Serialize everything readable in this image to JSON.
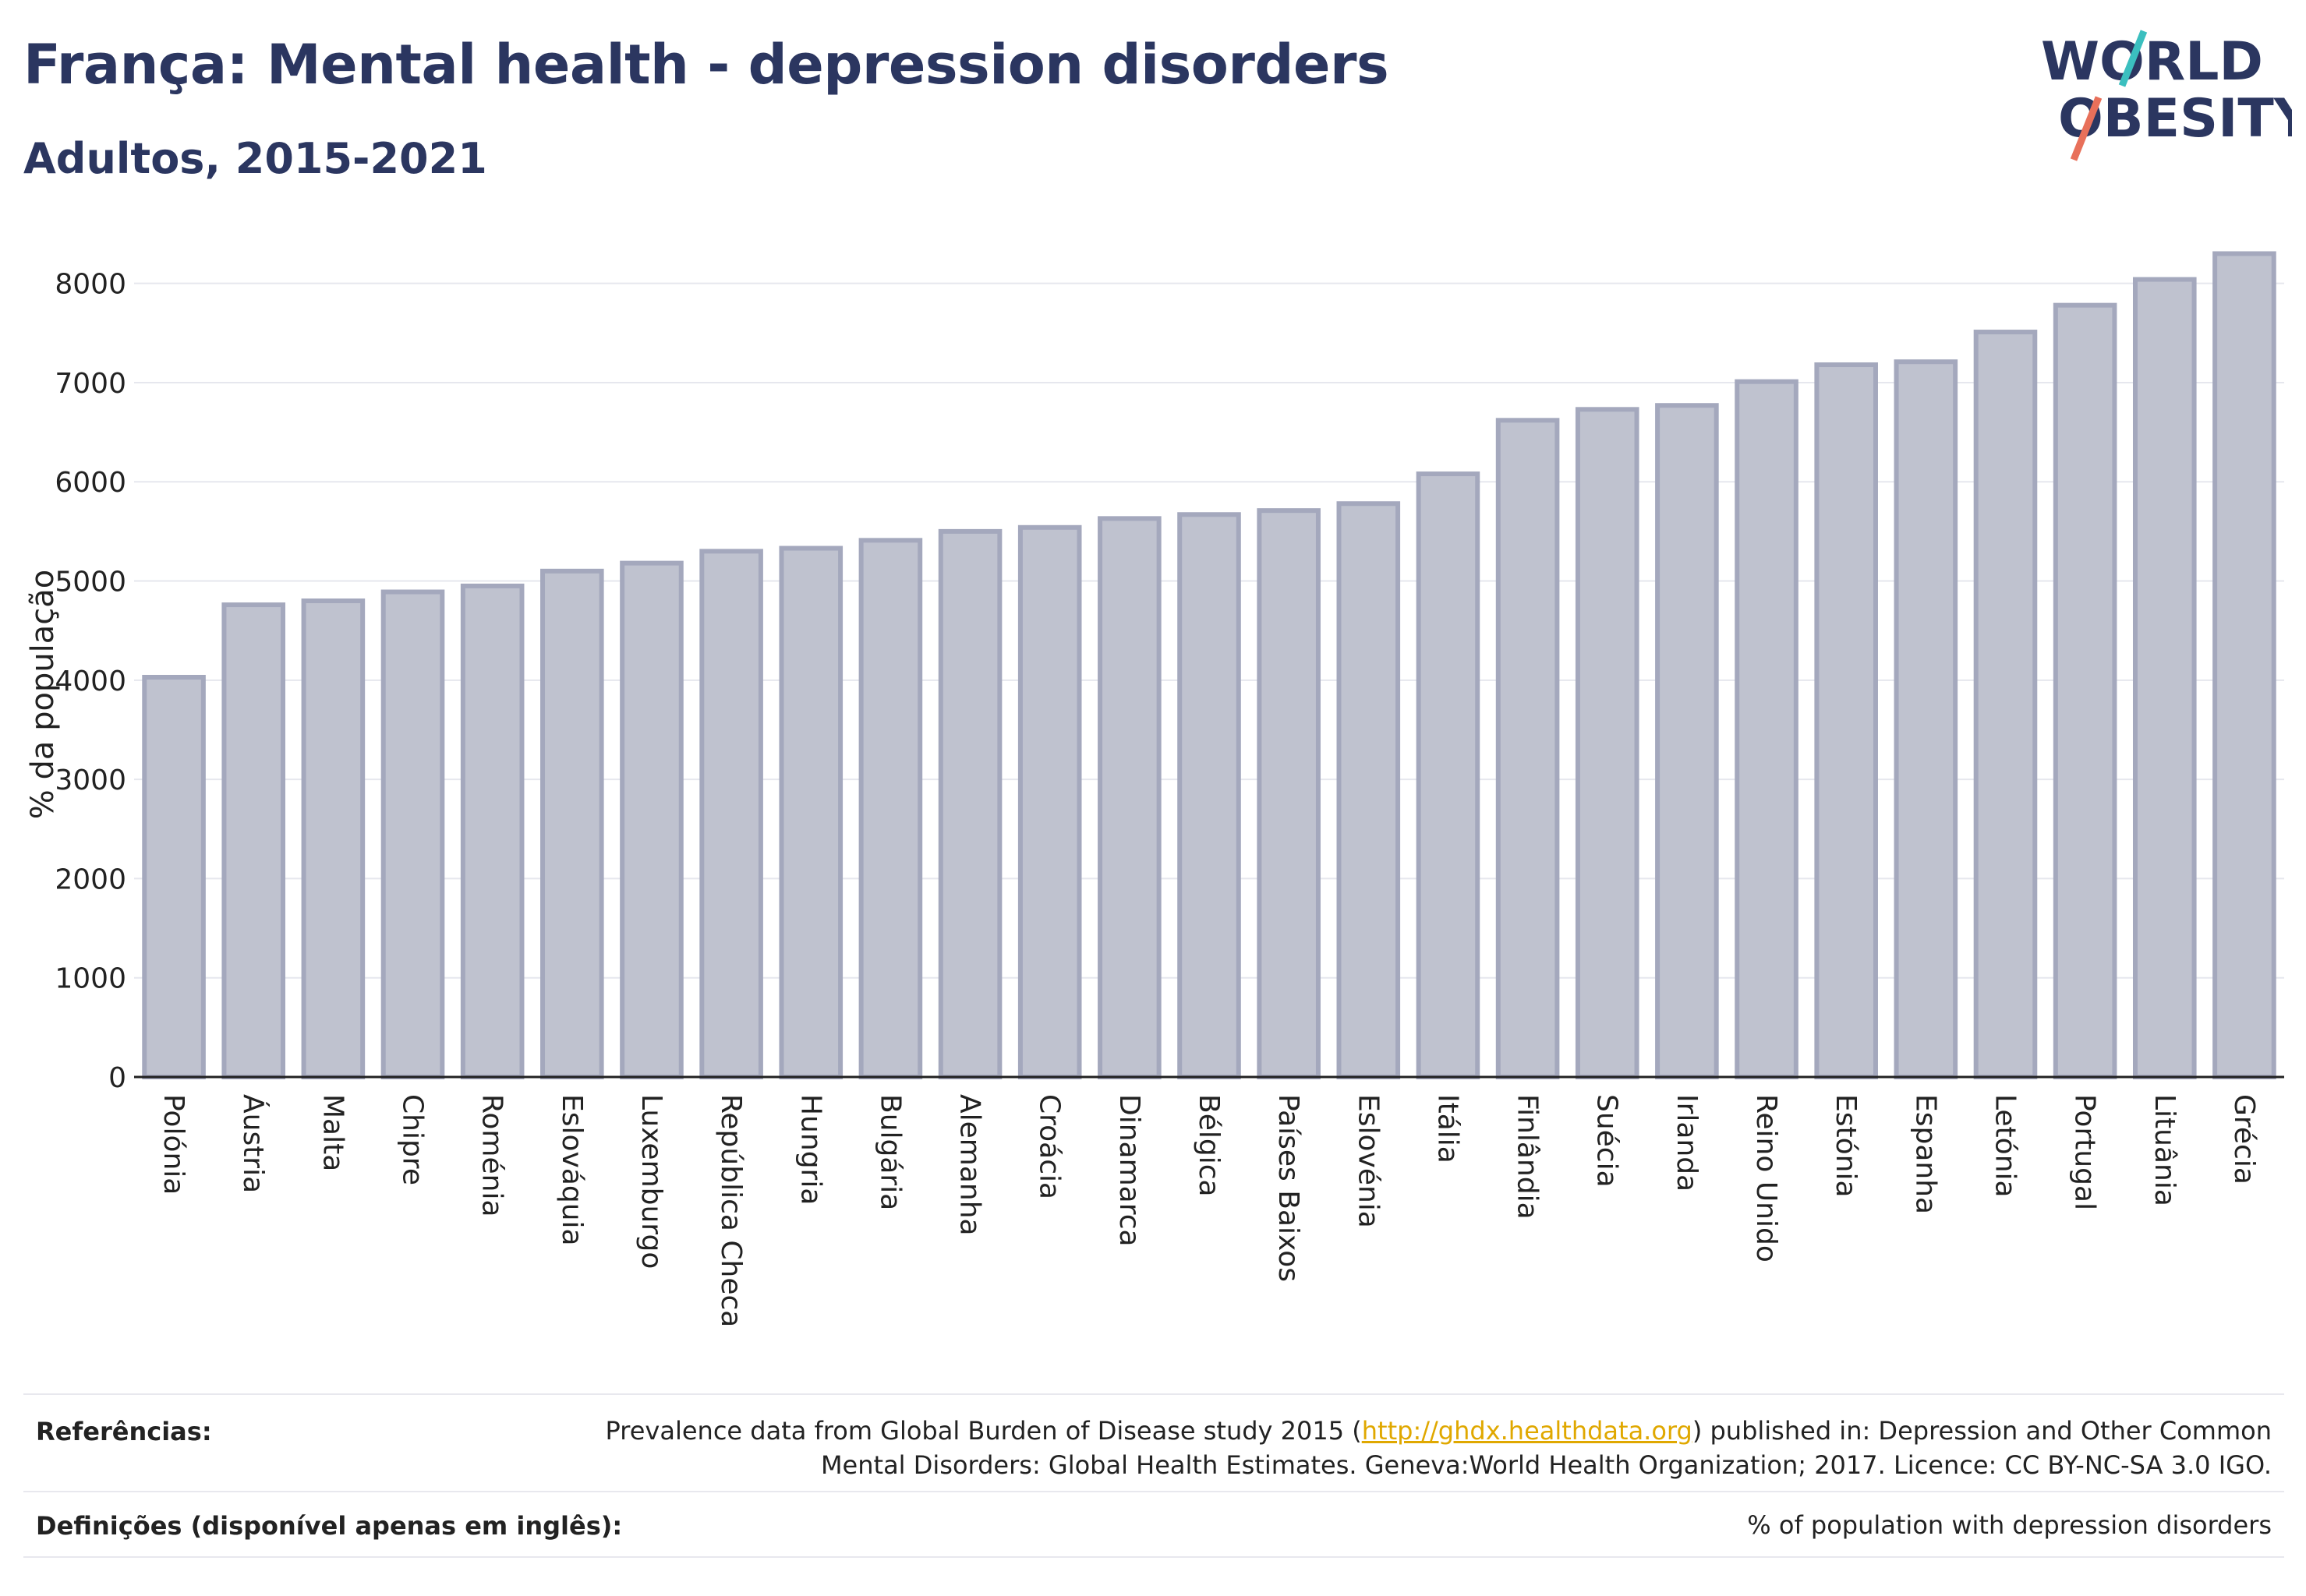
{
  "header": {
    "title": "França: Mental health - depression disorders",
    "subtitle": "Adultos, 2015-2021"
  },
  "logo": {
    "line1": "WORLD",
    "line2": "OBESITY",
    "colors": {
      "text": "#2b3660",
      "accent1": "#3bbfbf",
      "accent2": "#e8705a"
    }
  },
  "chart_data": {
    "type": "bar",
    "ylabel": "% da população",
    "xlabel": "",
    "ylim": [
      0,
      8500
    ],
    "yticks": [
      0,
      1000,
      2000,
      3000,
      4000,
      5000,
      6000,
      7000,
      8000
    ],
    "grid": true,
    "bar_color": "#bfc2cf",
    "bar_edge_color": "#a4a8bd",
    "categories": [
      "Polónia",
      "Áustria",
      "Malta",
      "Chipre",
      "Roménia",
      "Eslováquia",
      "Luxemburgo",
      "República Checa",
      "Hungria",
      "Bulgária",
      "Alemanha",
      "Croácia",
      "Dinamarca",
      "Bélgica",
      "Países Baixos",
      "Eslovénia",
      "Itália",
      "Finlândia",
      "Suécia",
      "Irlanda",
      "Reino Unido",
      "Estónia",
      "Espanha",
      "Letónia",
      "Portugal",
      "Lituânia",
      "Grécia"
    ],
    "values": [
      4030,
      4760,
      4800,
      4890,
      4950,
      5100,
      5180,
      5300,
      5330,
      5410,
      5500,
      5540,
      5630,
      5670,
      5710,
      5780,
      6080,
      6620,
      6730,
      6770,
      7010,
      7180,
      7210,
      7510,
      7780,
      8040,
      8300
    ]
  },
  "footer": {
    "references_label": "Referências:",
    "references_text_1": "Prevalence data from Global Burden of Disease study 2015 (",
    "references_link": "http://ghdx.healthdata.org",
    "references_text_2": ") published in: Depression and Other Common",
    "references_text_3": "Mental Disorders: Global Health Estimates. Geneva:World Health Organization; 2017. Licence: CC BY-NC-SA 3.0 IGO.",
    "definitions_label": "Definições (disponível apenas em inglês):",
    "definitions_text": "% of population with depression disorders"
  }
}
